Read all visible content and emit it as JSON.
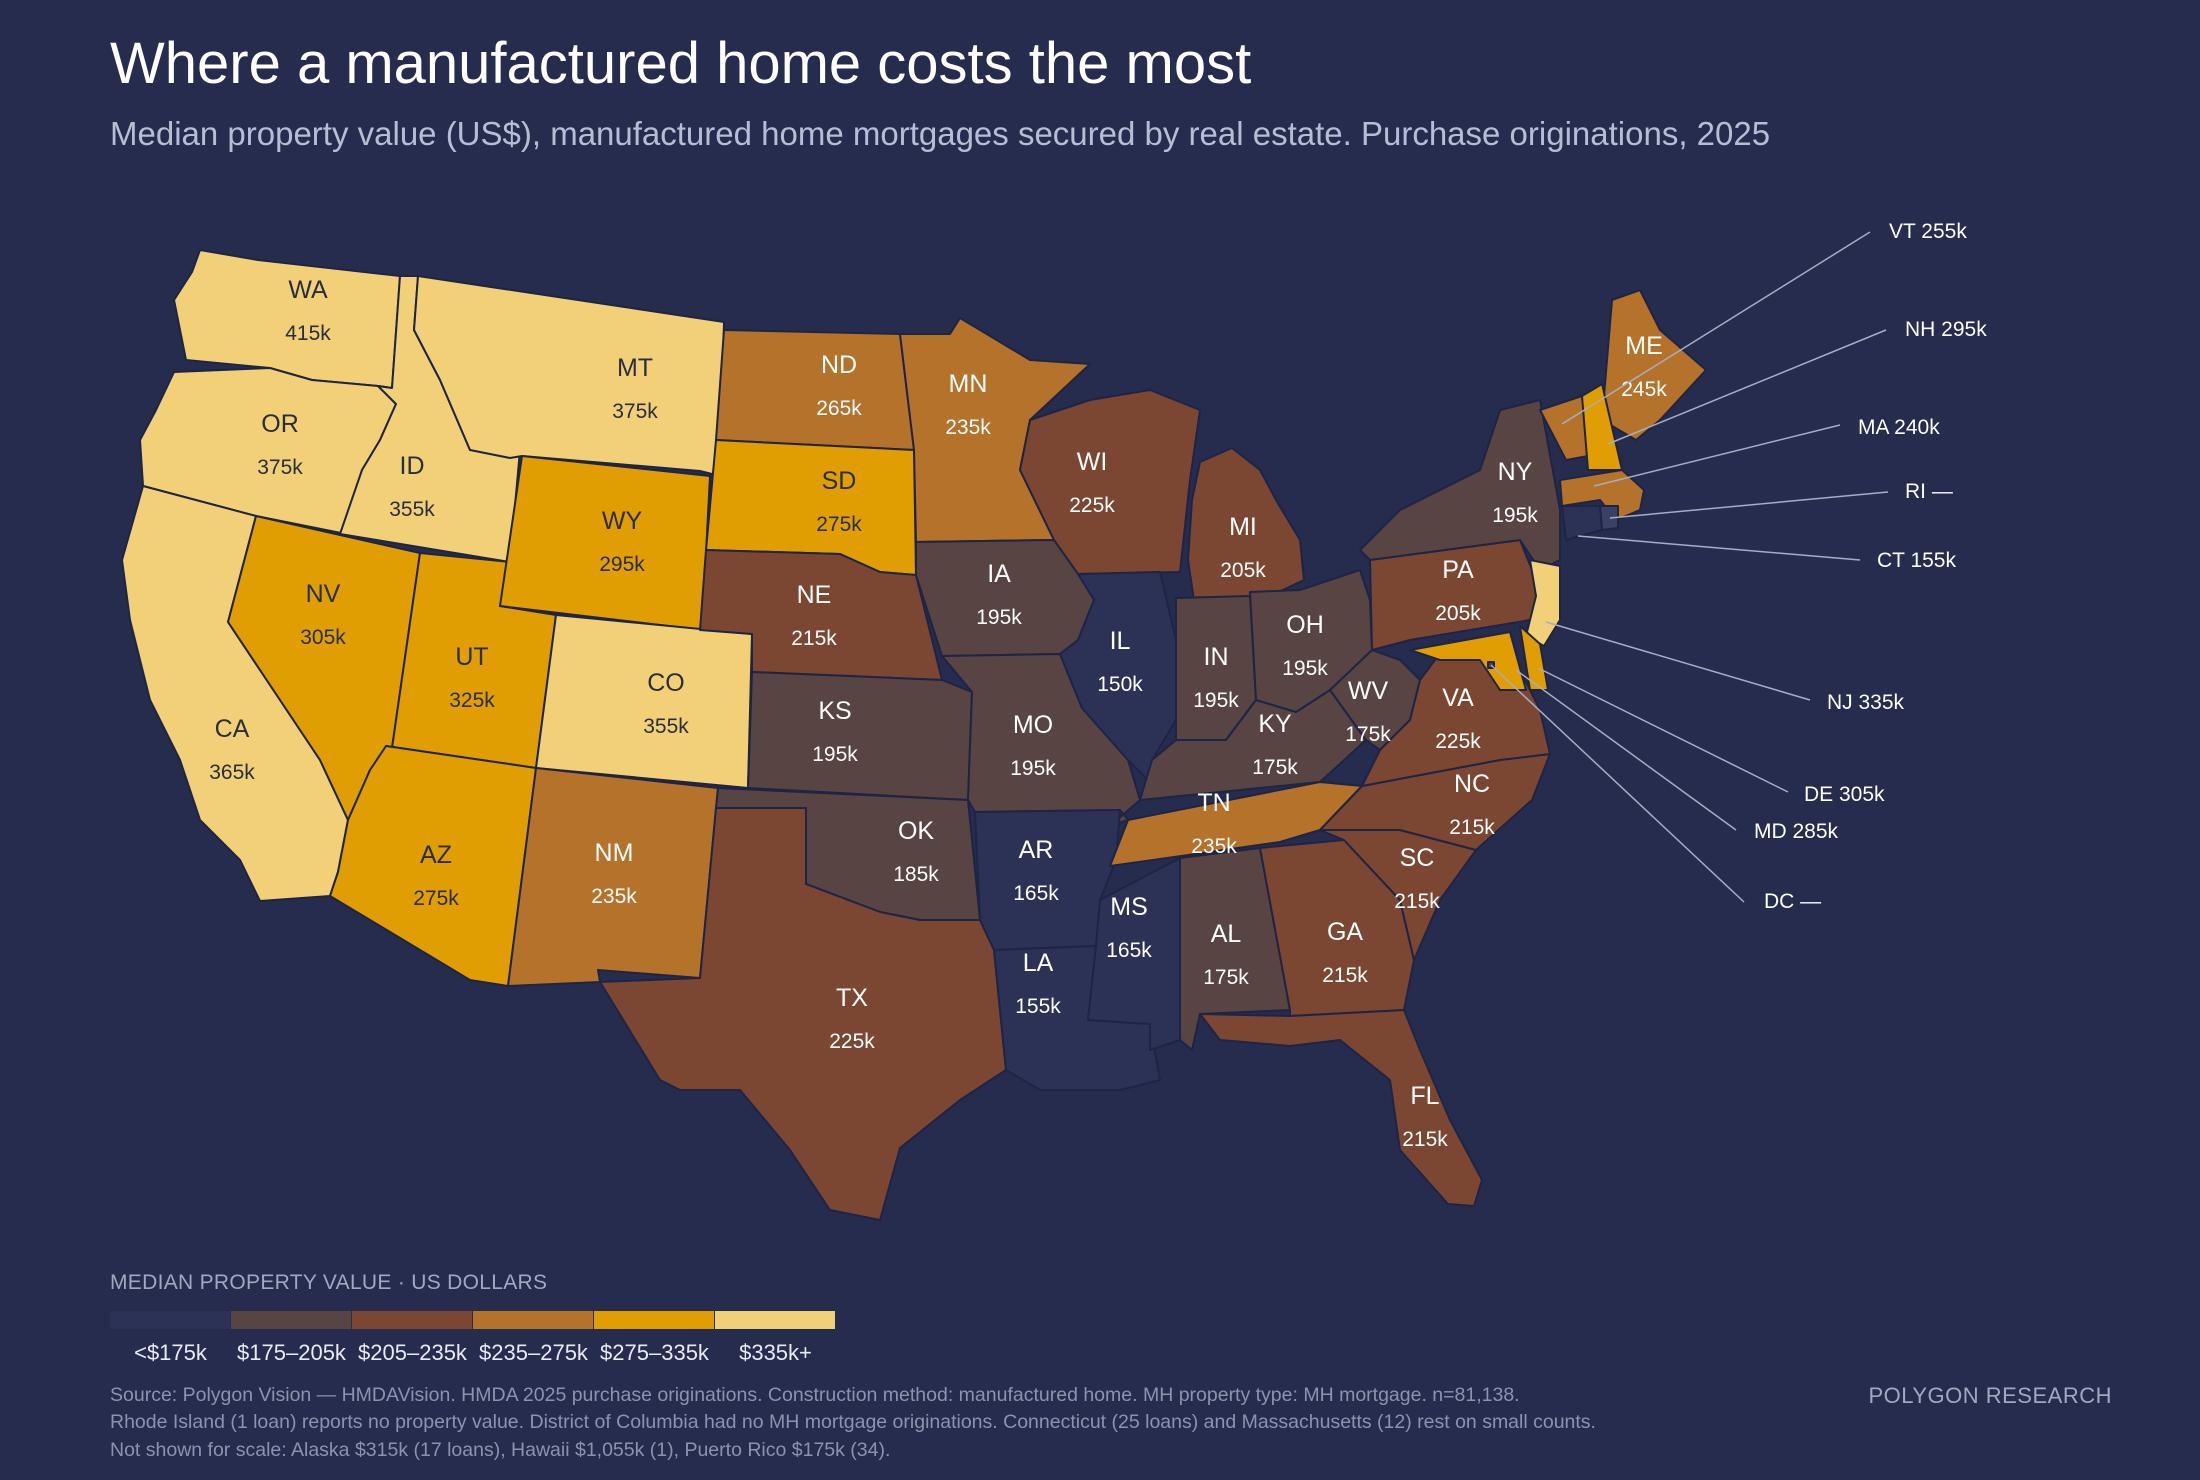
{
  "header": {
    "title": "Where a manufactured home costs the most",
    "subtitle": "Median property value (US$), manufactured home mortgages secured by real estate. Purchase originations, 2025"
  },
  "colors": {
    "background": "#252c4e",
    "bin_lt175": "#2c3256",
    "bin_175_205": "#584442",
    "bin_205_235": "#7b4732",
    "bin_235_275": "#b5722a",
    "bin_275_335": "#e09e03",
    "bin_335plus": "#f1d077"
  },
  "states": [
    {
      "abbr": "WA",
      "value": "415k",
      "bin": 5
    },
    {
      "abbr": "OR",
      "value": "375k",
      "bin": 5
    },
    {
      "abbr": "CA",
      "value": "365k",
      "bin": 5
    },
    {
      "abbr": "ID",
      "value": "355k",
      "bin": 5
    },
    {
      "abbr": "MT",
      "value": "375k",
      "bin": 5
    },
    {
      "abbr": "NV",
      "value": "305k",
      "bin": 4
    },
    {
      "abbr": "UT",
      "value": "325k",
      "bin": 4
    },
    {
      "abbr": "AZ",
      "value": "275k",
      "bin": 4
    },
    {
      "abbr": "WY",
      "value": "295k",
      "bin": 4
    },
    {
      "abbr": "CO",
      "value": "355k",
      "bin": 5
    },
    {
      "abbr": "NM",
      "value": "235k",
      "bin": 3
    },
    {
      "abbr": "ND",
      "value": "265k",
      "bin": 3
    },
    {
      "abbr": "SD",
      "value": "275k",
      "bin": 4
    },
    {
      "abbr": "NE",
      "value": "215k",
      "bin": 2
    },
    {
      "abbr": "KS",
      "value": "195k",
      "bin": 1
    },
    {
      "abbr": "OK",
      "value": "185k",
      "bin": 1
    },
    {
      "abbr": "TX",
      "value": "225k",
      "bin": 2
    },
    {
      "abbr": "MN",
      "value": "235k",
      "bin": 3
    },
    {
      "abbr": "IA",
      "value": "195k",
      "bin": 1
    },
    {
      "abbr": "MO",
      "value": "195k",
      "bin": 1
    },
    {
      "abbr": "AR",
      "value": "165k",
      "bin": 0
    },
    {
      "abbr": "LA",
      "value": "155k",
      "bin": 0
    },
    {
      "abbr": "WI",
      "value": "225k",
      "bin": 2
    },
    {
      "abbr": "IL",
      "value": "150k",
      "bin": 0
    },
    {
      "abbr": "MS",
      "value": "165k",
      "bin": 0
    },
    {
      "abbr": "MI",
      "value": "205k",
      "bin": 2
    },
    {
      "abbr": "IN",
      "value": "195k",
      "bin": 1
    },
    {
      "abbr": "KY",
      "value": "175k",
      "bin": 1
    },
    {
      "abbr": "TN",
      "value": "235k",
      "bin": 3
    },
    {
      "abbr": "AL",
      "value": "175k",
      "bin": 1
    },
    {
      "abbr": "OH",
      "value": "195k",
      "bin": 1
    },
    {
      "abbr": "WV",
      "value": "175k",
      "bin": 1
    },
    {
      "abbr": "GA",
      "value": "215k",
      "bin": 2
    },
    {
      "abbr": "FL",
      "value": "215k",
      "bin": 2
    },
    {
      "abbr": "SC",
      "value": "215k",
      "bin": 2
    },
    {
      "abbr": "NC",
      "value": "215k",
      "bin": 2
    },
    {
      "abbr": "VA",
      "value": "225k",
      "bin": 2
    },
    {
      "abbr": "PA",
      "value": "205k",
      "bin": 2
    },
    {
      "abbr": "NY",
      "value": "195k",
      "bin": 1
    },
    {
      "abbr": "ME",
      "value": "245k",
      "bin": 3
    },
    {
      "abbr": "VT",
      "value": "255k",
      "bin": 3
    },
    {
      "abbr": "NH",
      "value": "295k",
      "bin": 4
    },
    {
      "abbr": "MA",
      "value": "240k",
      "bin": 3
    },
    {
      "abbr": "RI",
      "value": "—",
      "bin": -1
    },
    {
      "abbr": "CT",
      "value": "155k",
      "bin": 0
    },
    {
      "abbr": "NJ",
      "value": "335k",
      "bin": 5
    },
    {
      "abbr": "DE",
      "value": "305k",
      "bin": 4
    },
    {
      "abbr": "MD",
      "value": "285k",
      "bin": 4
    },
    {
      "abbr": "DC",
      "value": "—",
      "bin": -1
    }
  ],
  "callouts": [
    {
      "text": "VT  255k"
    },
    {
      "text": "NH  295k"
    },
    {
      "text": "MA  240k"
    },
    {
      "text": "RI  —"
    },
    {
      "text": "CT  155k"
    },
    {
      "text": "NJ  335k"
    },
    {
      "text": "DE  305k"
    },
    {
      "text": "MD  285k"
    },
    {
      "text": "DC  —"
    }
  ],
  "legend": {
    "title": "MEDIAN PROPERTY VALUE  ·  US DOLLARS",
    "bins": [
      "<$175k",
      "$175–205k",
      "$205–235k",
      "$235–275k",
      "$275–335k",
      "$335k+"
    ]
  },
  "footer": {
    "line1": "Source: Polygon Vision — HMDAVision. HMDA 2025 purchase originations. Construction method: manufactured home. MH property type: MH mortgage. n=81,138.",
    "line2": "Rhode Island (1 loan) reports no property value. District of Columbia had no MH mortgage originations. Connecticut (25 loans) and Massachusetts (12) rest on small counts.",
    "line3": "Not shown for scale: Alaska $315k (17 loans), Hawaii $1,055k (1), Puerto Rico $175k (34).",
    "brand": "POLYGON RESEARCH"
  }
}
